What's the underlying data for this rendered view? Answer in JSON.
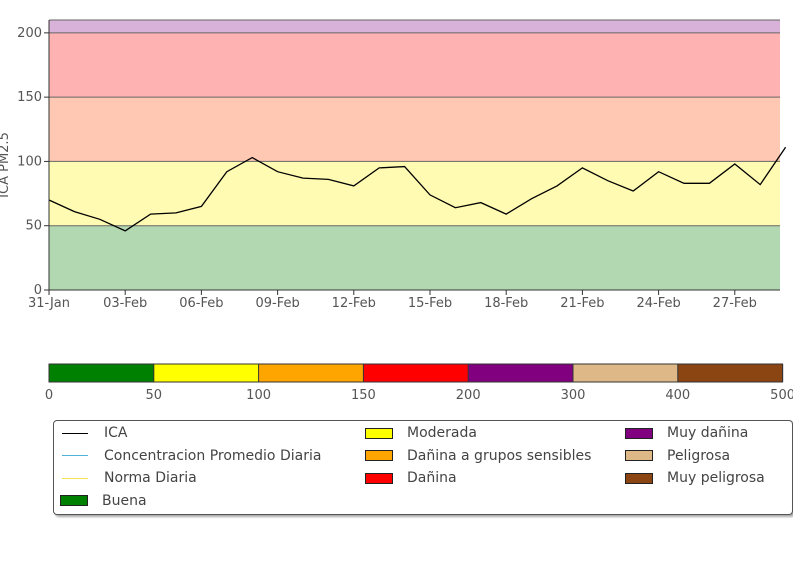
{
  "chart_data": {
    "type": "line",
    "title": "",
    "ylabel": "ICA PM2.5",
    "xlabel": "",
    "ylim": [
      0,
      210
    ],
    "y_ticks": [
      0,
      50,
      100,
      150,
      200
    ],
    "x_tick_labels": [
      "31-Jan",
      "03-Feb",
      "06-Feb",
      "09-Feb",
      "12-Feb",
      "15-Feb",
      "18-Feb",
      "21-Feb",
      "24-Feb",
      "27-Feb"
    ],
    "grid": false,
    "background_bands": [
      {
        "from": 0,
        "to": 50,
        "color": "#b2d8b2"
      },
      {
        "from": 50,
        "to": 100,
        "color": "#fffbb2"
      },
      {
        "from": 100,
        "to": 150,
        "color": "#ffc8b2"
      },
      {
        "from": 150,
        "to": 200,
        "color": "#ffb2b2"
      },
      {
        "from": 200,
        "to": 210,
        "color": "#d8b2d8"
      }
    ],
    "series": [
      {
        "name": "ICA",
        "color": "#000000",
        "x": [
          "31-Jan",
          "01-Feb",
          "02-Feb",
          "03-Feb",
          "04-Feb",
          "05-Feb",
          "06-Feb",
          "07-Feb",
          "08-Feb",
          "09-Feb",
          "10-Feb",
          "11-Feb",
          "12-Feb",
          "13-Feb",
          "14-Feb",
          "15-Feb",
          "16-Feb",
          "17-Feb",
          "18-Feb",
          "19-Feb",
          "20-Feb",
          "21-Feb",
          "22-Feb",
          "23-Feb",
          "24-Feb",
          "25-Feb",
          "26-Feb",
          "27-Feb",
          "28-Feb",
          "29-Feb"
        ],
        "values": [
          70,
          61,
          55,
          46,
          59,
          60,
          65,
          92,
          103,
          92,
          87,
          86,
          81,
          95,
          96,
          74,
          64,
          68,
          59,
          71,
          81,
          95,
          85,
          77,
          92,
          83,
          83,
          98,
          82,
          111
        ]
      }
    ],
    "colorbar": {
      "tick_labels": [
        "0",
        "50",
        "100",
        "150",
        "200",
        "300",
        "400",
        "500"
      ],
      "segments": [
        {
          "from": 0,
          "to": 50,
          "color": "#008000"
        },
        {
          "from": 50,
          "to": 100,
          "color": "#ffff00"
        },
        {
          "from": 100,
          "to": 150,
          "color": "#ffa500"
        },
        {
          "from": 150,
          "to": 200,
          "color": "#ff0000"
        },
        {
          "from": 200,
          "to": 300,
          "color": "#800080"
        },
        {
          "from": 300,
          "to": 400,
          "color": "#deb887"
        },
        {
          "from": 400,
          "to": 500,
          "color": "#8b4513"
        }
      ]
    },
    "legend": {
      "placement": "bottom",
      "entries": [
        {
          "label": "ICA",
          "kind": "line",
          "color": "#000000"
        },
        {
          "label": "Concentracion Promedio Diaria",
          "kind": "line",
          "color": "#4fb3d9"
        },
        {
          "label": "Norma Diaria",
          "kind": "line",
          "color": "#f2e24a"
        },
        {
          "label": "Buena",
          "kind": "swatch",
          "color": "#008000"
        },
        {
          "label": "Moderada",
          "kind": "swatch",
          "color": "#ffff00"
        },
        {
          "label": "Dañina a grupos sensibles",
          "kind": "swatch",
          "color": "#ffa500"
        },
        {
          "label": "Dañina",
          "kind": "swatch",
          "color": "#ff0000"
        },
        {
          "label": "Muy dañina",
          "kind": "swatch",
          "color": "#800080"
        },
        {
          "label": "Peligrosa",
          "kind": "swatch",
          "color": "#deb887"
        },
        {
          "label": "Muy peligrosa",
          "kind": "swatch",
          "color": "#8b4513"
        }
      ]
    }
  }
}
